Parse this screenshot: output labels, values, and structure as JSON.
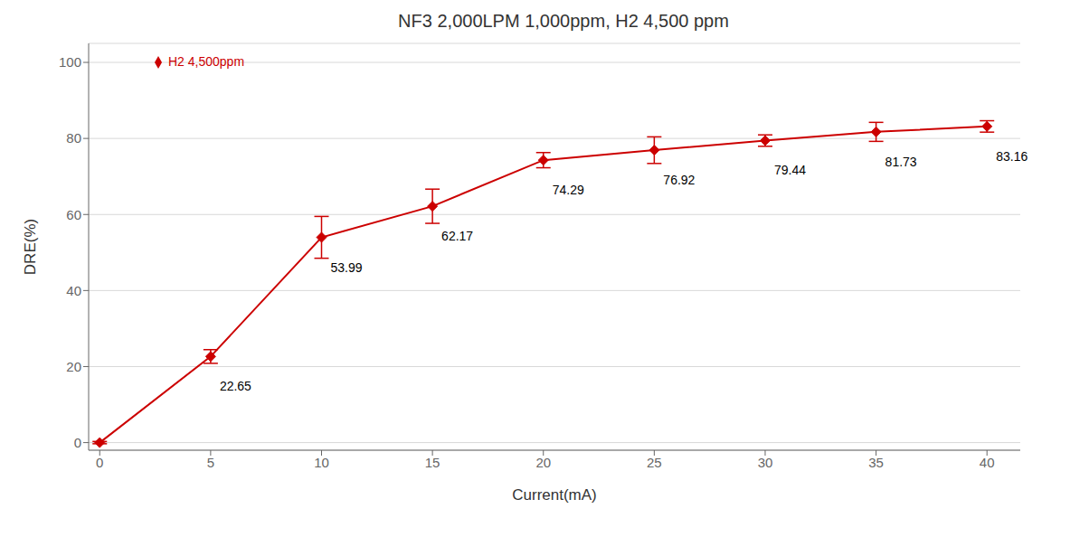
{
  "chart_data": {
    "type": "line",
    "title": "NF3 2,000LPM 1,000ppm, H2 4,500 ppm",
    "xlabel": "Current(mA)",
    "ylabel": "DRE(%)",
    "x": [
      0,
      5,
      10,
      15,
      20,
      25,
      30,
      35,
      40
    ],
    "series": [
      {
        "name": "H2 4,500ppm",
        "color": "#CC0000",
        "marker": "diamond",
        "values": [
          0.0,
          22.65,
          53.99,
          62.17,
          74.29,
          76.92,
          79.44,
          81.73,
          83.16
        ],
        "yerr": [
          0.3,
          1.8,
          5.5,
          4.5,
          2.0,
          3.5,
          1.5,
          2.5,
          1.5
        ]
      }
    ],
    "xlim": [
      -0.5,
      41.5
    ],
    "ylim": [
      -2,
      105
    ],
    "xticks": [
      0,
      5,
      10,
      15,
      20,
      25,
      30,
      35,
      40
    ],
    "yticks": [
      0,
      20,
      40,
      60,
      80,
      100
    ],
    "grid": true,
    "legend": "upper left",
    "annotations": [
      {
        "x": 5,
        "y": 22.65,
        "label": "22.65"
      },
      {
        "x": 10,
        "y": 53.99,
        "label": "53.99"
      },
      {
        "x": 15,
        "y": 62.17,
        "label": "62.17"
      },
      {
        "x": 20,
        "y": 74.29,
        "label": "74.29"
      },
      {
        "x": 25,
        "y": 76.92,
        "label": "76.92"
      },
      {
        "x": 30,
        "y": 79.44,
        "label": "79.44"
      },
      {
        "x": 35,
        "y": 81.73,
        "label": "81.73"
      },
      {
        "x": 40,
        "y": 83.16,
        "label": "83.16"
      }
    ]
  }
}
